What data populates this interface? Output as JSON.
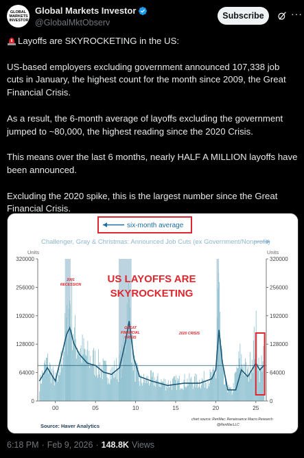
{
  "account": {
    "avatar_text": "GLOBAL MARKETS INVESTOR",
    "name": "Global Markets Investor",
    "handle": "@GlobalMktObserv",
    "verified": true,
    "verified_color": "#1d9bf0"
  },
  "header": {
    "subscribe_label": "Subscribe",
    "grok_icon": "grok-icon",
    "more_label": "···"
  },
  "tweet": {
    "headline": "Layoffs are SKYROCKETING in the US:",
    "paragraphs": [
      "US-based employers excluding government announced 107,338 job cuts in January, the highest count for the month since 2009, the Great Financial Crisis.",
      "As a result, the 6-month average of layoffs excluding the government jumped to ~80,000, the highest reading since the 2020 Crisis.",
      "This means over the last 6 months, nearly HALF A MILLION layoffs have been announced.",
      "Excluding the 2020 spike, this is the largest number since the Great Financial Crisis."
    ]
  },
  "footer": {
    "time": "6:18 PM",
    "date": "Feb 9, 2026",
    "views": "148.8K",
    "views_label": "Views"
  },
  "chart_data": {
    "type": "bar",
    "title": "Challenger, Gray & Christmas: Announced Job Cuts (ex Government/Nonprofit)",
    "legend_label": "six-month average",
    "y_units_left": "Units",
    "y_units_right": "Units",
    "ylim": [
      0,
      320000
    ],
    "y_ticks": [
      "0",
      "64000",
      "128000",
      "192000",
      "256000",
      "320000"
    ],
    "x_ticks": [
      "00",
      "05",
      "10",
      "15",
      "20",
      "25"
    ],
    "overlay_title_lines": [
      "US LAYOFFS ARE",
      "SKYROCKETING"
    ],
    "annotations": [
      {
        "lines": [
          "2001",
          "RECESSION"
        ]
      },
      {
        "lines": [
          "GREAT",
          "FINANCIAL",
          "CRISIS"
        ]
      },
      {
        "lines": [
          "2020 CRISIS"
        ]
      }
    ],
    "source": "Source:  Haver Analytics",
    "credit_lines": [
      "chart source: RenMac: Renaissance Macro Research",
      "@RenMacLLC"
    ],
    "colors": {
      "bars": "#8cc0cf",
      "line": "#1b5777",
      "recession": "#bcd3e0",
      "accent": "#e0262d",
      "arrow": "#1a6ea3"
    },
    "monthly_anchors": [
      {
        "x": 1998.0,
        "y": 40000
      },
      {
        "x": 1998.9,
        "y": 90000
      },
      {
        "x": 1999.6,
        "y": 60000
      },
      {
        "x": 2000.3,
        "y": 40000
      },
      {
        "x": 2000.9,
        "y": 120000
      },
      {
        "x": 2001.2,
        "y": 150000
      },
      {
        "x": 2001.6,
        "y": 180000
      },
      {
        "x": 2001.8,
        "y": 248000
      },
      {
        "x": 2002.3,
        "y": 150000
      },
      {
        "x": 2003.0,
        "y": 120000
      },
      {
        "x": 2004.0,
        "y": 100000
      },
      {
        "x": 2005.0,
        "y": 90000
      },
      {
        "x": 2006.0,
        "y": 70000
      },
      {
        "x": 2007.0,
        "y": 65000
      },
      {
        "x": 2008.0,
        "y": 80000
      },
      {
        "x": 2008.6,
        "y": 120000
      },
      {
        "x": 2009.0,
        "y": 240000
      },
      {
        "x": 2009.3,
        "y": 170000
      },
      {
        "x": 2009.8,
        "y": 80000
      },
      {
        "x": 2010.5,
        "y": 45000
      },
      {
        "x": 2012.0,
        "y": 50000
      },
      {
        "x": 2014.0,
        "y": 40000
      },
      {
        "x": 2016.0,
        "y": 45000
      },
      {
        "x": 2018.0,
        "y": 45000
      },
      {
        "x": 2019.5,
        "y": 55000
      },
      {
        "x": 2020.0,
        "y": 60000
      },
      {
        "x": 2020.3,
        "y": 300000
      },
      {
        "x": 2020.6,
        "y": 120000
      },
      {
        "x": 2021.0,
        "y": 40000
      },
      {
        "x": 2022.0,
        "y": 20000
      },
      {
        "x": 2023.0,
        "y": 100000
      },
      {
        "x": 2024.0,
        "y": 60000
      },
      {
        "x": 2025.0,
        "y": 150000
      },
      {
        "x": 2025.5,
        "y": 60000
      },
      {
        "x": 2025.8,
        "y": 108000
      },
      {
        "x": 2026.0,
        "y": 107000
      }
    ],
    "six_month_average": [
      {
        "x": 1998.0,
        "y": 45000
      },
      {
        "x": 1999.0,
        "y": 75000
      },
      {
        "x": 2000.0,
        "y": 45000
      },
      {
        "x": 2001.0,
        "y": 120000
      },
      {
        "x": 2001.4,
        "y": 150000
      },
      {
        "x": 2001.8,
        "y": 165000
      },
      {
        "x": 2002.3,
        "y": 130000
      },
      {
        "x": 2003.0,
        "y": 105000
      },
      {
        "x": 2004.0,
        "y": 85000
      },
      {
        "x": 2005.0,
        "y": 80000
      },
      {
        "x": 2006.0,
        "y": 65000
      },
      {
        "x": 2007.0,
        "y": 60000
      },
      {
        "x": 2008.0,
        "y": 75000
      },
      {
        "x": 2008.7,
        "y": 130000
      },
      {
        "x": 2009.2,
        "y": 180000
      },
      {
        "x": 2009.8,
        "y": 95000
      },
      {
        "x": 2010.5,
        "y": 55000
      },
      {
        "x": 2012.0,
        "y": 45000
      },
      {
        "x": 2014.0,
        "y": 35000
      },
      {
        "x": 2016.0,
        "y": 40000
      },
      {
        "x": 2018.0,
        "y": 40000
      },
      {
        "x": 2019.5,
        "y": 50000
      },
      {
        "x": 2020.0,
        "y": 70000
      },
      {
        "x": 2020.4,
        "y": 160000
      },
      {
        "x": 2020.8,
        "y": 90000
      },
      {
        "x": 2021.5,
        "y": 25000
      },
      {
        "x": 2022.5,
        "y": 25000
      },
      {
        "x": 2023.2,
        "y": 70000
      },
      {
        "x": 2024.0,
        "y": 55000
      },
      {
        "x": 2025.0,
        "y": 85000
      },
      {
        "x": 2025.5,
        "y": 70000
      },
      {
        "x": 2026.0,
        "y": 80000
      }
    ],
    "recession_bands": [
      [
        2001.2,
        2001.9
      ],
      [
        2007.9,
        2009.5
      ],
      [
        2020.1,
        2020.4
      ]
    ],
    "highlight_box": [
      2025.0,
      2026.1
    ]
  }
}
